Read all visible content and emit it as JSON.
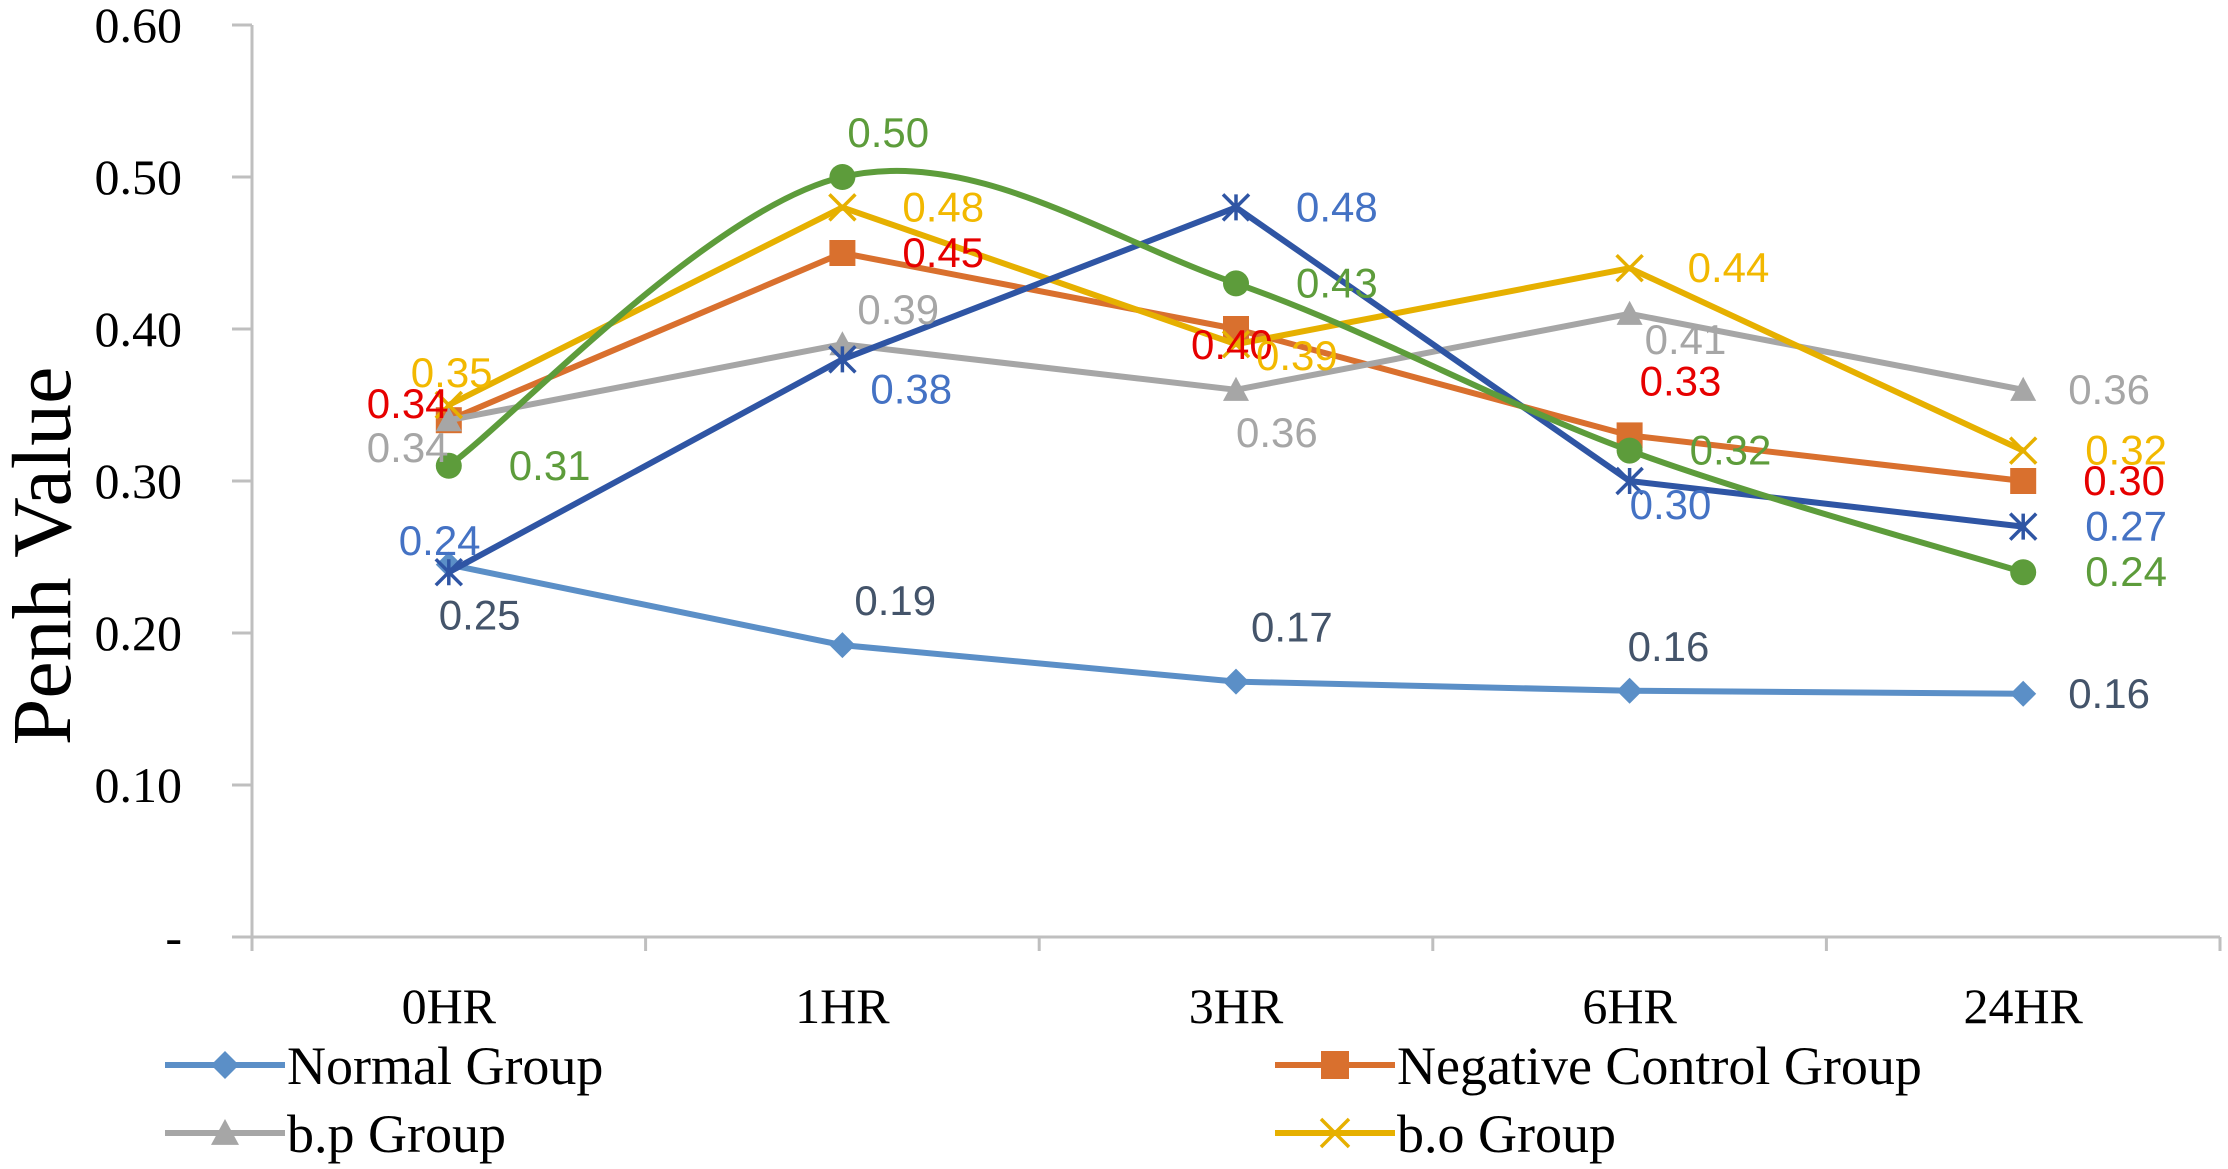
{
  "chart_data": {
    "type": "line",
    "title": "",
    "xlabel": "",
    "ylabel": "Penh Value",
    "ylim": [
      0,
      0.6
    ],
    "yticks": [
      0,
      0.1,
      0.2,
      0.3,
      0.4,
      0.5,
      0.6
    ],
    "ytick_labels": [
      "-",
      "0.10",
      "0.20",
      "0.30",
      "0.40",
      "0.50",
      "0.60"
    ],
    "categories": [
      "0HR",
      "1HR",
      "3HR",
      "6HR",
      "24HR"
    ],
    "grid": false,
    "legend_position": "bottom",
    "series": [
      {
        "name": "Normal Group",
        "color": "#5B8FC7",
        "label_color": "#44546A",
        "marker": "diamond",
        "values": [
          0.245,
          0.192,
          0.168,
          0.162,
          0.16
        ],
        "labels": [
          "0.25",
          "0.19",
          "0.17",
          "0.16",
          "0.16"
        ]
      },
      {
        "name": "Negative Control Group",
        "color": "#D9702E",
        "label_color": "#E60000",
        "marker": "square",
        "values": [
          0.34,
          0.45,
          0.4,
          0.33,
          0.3
        ],
        "labels": [
          "0.34",
          "0.45",
          "0.40",
          "0.33",
          "0.30"
        ]
      },
      {
        "name": "b.p Group",
        "color": "#A6A6A6",
        "label_color": "#A6A6A6",
        "marker": "triangle",
        "values": [
          0.34,
          0.39,
          0.36,
          0.41,
          0.36
        ],
        "labels": [
          "0.34",
          "0.39",
          "0.36",
          "0.41",
          "0.36"
        ]
      },
      {
        "name": "b.o Group",
        "color": "#E6B000",
        "label_color": "#F2B800",
        "marker": "x",
        "values": [
          0.35,
          0.48,
          0.39,
          0.44,
          0.32
        ],
        "labels": [
          "0.35",
          "0.48",
          "0.39",
          "0.44",
          "0.32"
        ]
      },
      {
        "name": "",
        "color": "#2F55A4",
        "label_color": "#4472C4",
        "marker": "asterisk",
        "values": [
          0.24,
          0.38,
          0.48,
          0.3,
          0.27
        ],
        "labels": [
          "0.24",
          "0.38",
          "0.48",
          "0.30",
          "0.27"
        ]
      },
      {
        "name": "",
        "color": "#5D9C3B",
        "label_color": "#5D9C3B",
        "marker": "circle",
        "smooth": true,
        "values": [
          0.31,
          0.5,
          0.43,
          0.32,
          0.24
        ],
        "labels": [
          "0.31",
          "0.50",
          "0.43",
          "0.32",
          "0.24"
        ]
      }
    ]
  }
}
